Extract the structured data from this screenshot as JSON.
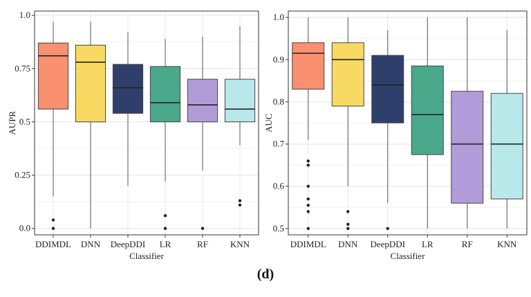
{
  "caption": "(d)",
  "chart_data": [
    {
      "type": "box",
      "title": "",
      "xlabel": "Classifier",
      "ylabel": "AUPR",
      "ylim": [
        -0.03,
        1.02
      ],
      "yticks": [
        0.0,
        0.25,
        0.5,
        0.75,
        1.0
      ],
      "ytick_labels": [
        "0.0",
        "0.25",
        "0.5",
        "0.75",
        "1.0"
      ],
      "grid": true,
      "categories": [
        "DDIMDL",
        "DNN",
        "DeepDDI",
        "LR",
        "RF",
        "KNN"
      ],
      "colors": [
        "#F9906F",
        "#F8DA62",
        "#2F3F6B",
        "#4AA88B",
        "#B19CD9",
        "#B8E8EA"
      ],
      "boxes": [
        {
          "name": "DDIMDL",
          "whisker_low": 0.15,
          "q1": 0.56,
          "median": 0.81,
          "q3": 0.87,
          "whisker_high": 0.97,
          "outliers": [
            0.04,
            0.0
          ]
        },
        {
          "name": "DNN",
          "whisker_low": 0.0,
          "q1": 0.5,
          "median": 0.78,
          "q3": 0.86,
          "whisker_high": 0.97,
          "outliers": []
        },
        {
          "name": "DeepDDI",
          "whisker_low": 0.2,
          "q1": 0.54,
          "median": 0.66,
          "q3": 0.77,
          "whisker_high": 0.92,
          "outliers": []
        },
        {
          "name": "LR",
          "whisker_low": 0.22,
          "q1": 0.5,
          "median": 0.59,
          "q3": 0.76,
          "whisker_high": 0.89,
          "outliers": [
            0.06,
            0.0
          ]
        },
        {
          "name": "RF",
          "whisker_low": 0.27,
          "q1": 0.5,
          "median": 0.58,
          "q3": 0.7,
          "whisker_high": 0.9,
          "outliers": [
            0.0
          ]
        },
        {
          "name": "KNN",
          "whisker_low": 0.39,
          "q1": 0.5,
          "median": 0.56,
          "q3": 0.7,
          "whisker_high": 0.95,
          "outliers": [
            0.13,
            0.11
          ]
        }
      ]
    },
    {
      "type": "box",
      "title": "",
      "xlabel": "Classifier",
      "ylabel": "AUC",
      "ylim": [
        0.485,
        1.015
      ],
      "yticks": [
        0.5,
        0.6,
        0.7,
        0.8,
        0.9,
        1.0
      ],
      "ytick_labels": [
        "0.5",
        "0.6",
        "0.7",
        "0.8",
        "0.9",
        "1.0"
      ],
      "grid": true,
      "categories": [
        "DDIMDL",
        "DNN",
        "DeepDDI",
        "LR",
        "RF",
        "KNN"
      ],
      "colors": [
        "#F9906F",
        "#F8DA62",
        "#2F3F6B",
        "#4AA88B",
        "#B19CD9",
        "#B8E8EA"
      ],
      "boxes": [
        {
          "name": "DDIMDL",
          "whisker_low": 0.71,
          "q1": 0.83,
          "median": 0.915,
          "q3": 0.94,
          "whisker_high": 1.0,
          "outliers": [
            0.66,
            0.65,
            0.6,
            0.57,
            0.555,
            0.54,
            0.5
          ]
        },
        {
          "name": "DNN",
          "whisker_low": 0.6,
          "q1": 0.79,
          "median": 0.9,
          "q3": 0.94,
          "whisker_high": 1.0,
          "outliers": [
            0.54,
            0.51,
            0.5
          ]
        },
        {
          "name": "DeepDDI",
          "whisker_low": 0.56,
          "q1": 0.75,
          "median": 0.84,
          "q3": 0.91,
          "whisker_high": 0.97,
          "outliers": [
            0.5
          ]
        },
        {
          "name": "LR",
          "whisker_low": 0.5,
          "q1": 0.675,
          "median": 0.77,
          "q3": 0.885,
          "whisker_high": 1.0,
          "outliers": []
        },
        {
          "name": "RF",
          "whisker_low": 0.5,
          "q1": 0.56,
          "median": 0.7,
          "q3": 0.825,
          "whisker_high": 1.0,
          "outliers": []
        },
        {
          "name": "KNN",
          "whisker_low": 0.5,
          "q1": 0.57,
          "median": 0.7,
          "q3": 0.82,
          "whisker_high": 0.97,
          "outliers": []
        }
      ]
    }
  ]
}
